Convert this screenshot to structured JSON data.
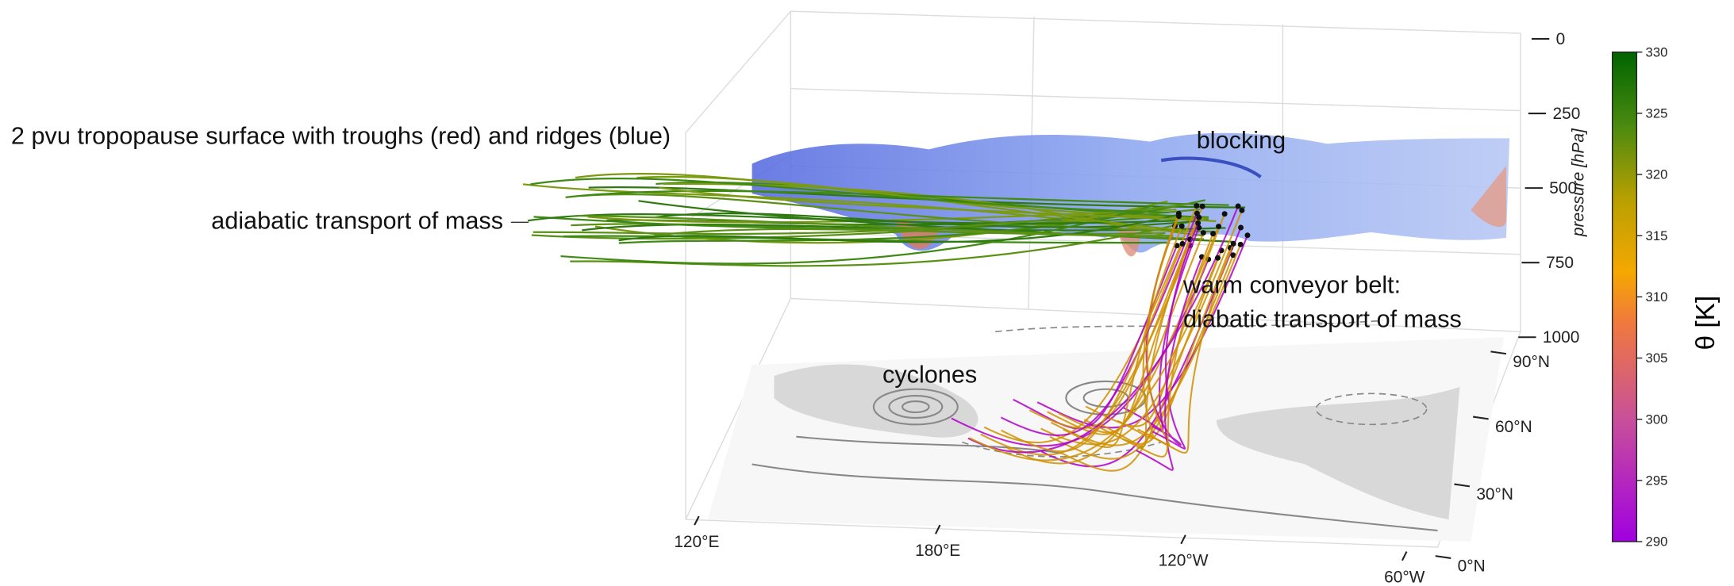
{
  "annotations": {
    "tropopause": "2 pvu tropopause surface with troughs (red) and ridges (blue)",
    "adiabatic": "adiabatic transport of mass",
    "blocking": "blocking",
    "wcb_line1": "warm conveyor belt:",
    "wcb_line2": "diabatic transport of mass",
    "cyclones": "cyclones"
  },
  "pressure_axis": {
    "label": "pressure [hPa]",
    "lim": [
      0,
      1000
    ],
    "ticks": [
      0,
      250,
      500,
      750,
      1000
    ]
  },
  "longitude_ticks": [
    "120°E",
    "180°E",
    "120°W",
    "60°W"
  ],
  "latitude_ticks": [
    "90°N",
    "60°N",
    "30°N",
    "0°N"
  ],
  "colorbar": {
    "label": "θ [K]",
    "lim": [
      290,
      330
    ],
    "ticks": [
      290,
      295,
      300,
      305,
      310,
      315,
      320,
      325,
      330
    ]
  }
}
